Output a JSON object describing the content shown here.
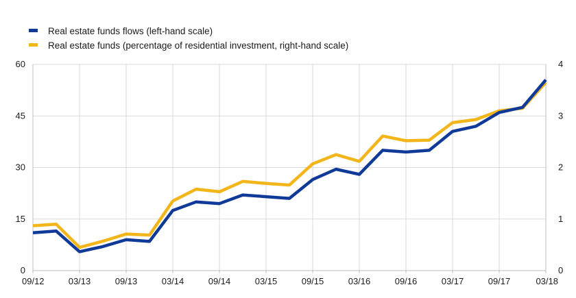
{
  "chart_data": {
    "type": "line",
    "title": "",
    "x": [
      "09/12",
      "12/12",
      "03/13",
      "06/13",
      "09/13",
      "12/13",
      "03/14",
      "06/14",
      "09/14",
      "12/14",
      "03/15",
      "06/15",
      "09/15",
      "12/15",
      "03/16",
      "06/16",
      "09/16",
      "12/16",
      "03/17",
      "06/17",
      "09/17",
      "12/17",
      "03/18"
    ],
    "x_tick_labels": [
      "09/12",
      "03/13",
      "09/13",
      "03/14",
      "09/14",
      "03/15",
      "09/15",
      "03/16",
      "09/16",
      "03/17",
      "09/17",
      "03/18"
    ],
    "left_axis": {
      "ylim": [
        0,
        60
      ],
      "ticks": [
        0,
        15,
        30,
        45,
        60
      ]
    },
    "right_axis": {
      "ylim": [
        0,
        4
      ],
      "ticks": [
        0,
        1,
        2,
        3,
        4
      ]
    },
    "grid": true,
    "legend_position": "top-left",
    "series": [
      {
        "name": "Real estate funds flows (left-hand scale)",
        "axis": "left",
        "color": "#0f3a97",
        "values": [
          11.0,
          11.5,
          5.5,
          7.0,
          9.0,
          8.5,
          17.5,
          20.0,
          19.5,
          22.0,
          21.5,
          21.0,
          26.5,
          29.5,
          28.0,
          35.0,
          34.5,
          35.0,
          40.5,
          42.0,
          46.0,
          47.5,
          55.5
        ]
      },
      {
        "name": "Real estate funds (percentage of residential investment, right-hand scale)",
        "axis": "right",
        "color": "#f2b51a",
        "values": [
          0.87,
          0.9,
          0.45,
          0.57,
          0.71,
          0.69,
          1.35,
          1.58,
          1.53,
          1.73,
          1.69,
          1.66,
          2.07,
          2.25,
          2.12,
          2.61,
          2.52,
          2.53,
          2.87,
          2.93,
          3.1,
          3.15,
          3.65
        ]
      }
    ]
  }
}
